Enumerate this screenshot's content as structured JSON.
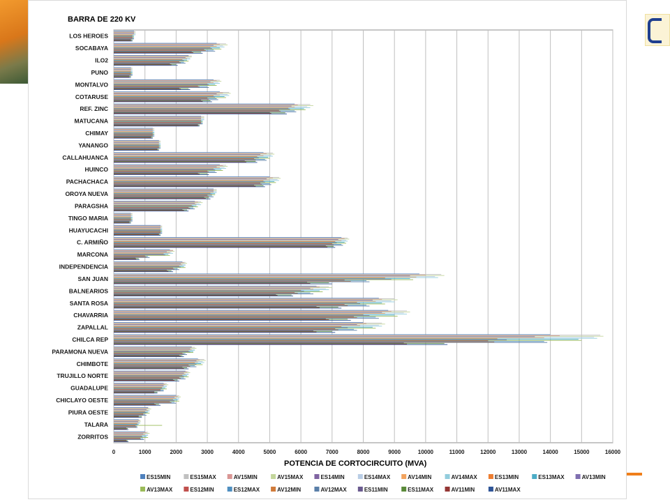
{
  "chart_data": {
    "type": "bar",
    "orientation": "horizontal",
    "title": "BARRA DE 220 KV",
    "xlabel": "POTENCIA DE CORTOCIRCUITO (MVA)",
    "ylabel": "",
    "xlim": [
      0,
      16000
    ],
    "xticks": [
      0,
      1000,
      2000,
      3000,
      4000,
      5000,
      6000,
      7000,
      8000,
      9000,
      10000,
      11000,
      12000,
      13000,
      14000,
      15000,
      16000
    ],
    "grid": true,
    "legend_position": "bottom",
    "categories": [
      "LOS HEROES",
      "SOCABAYA",
      "ILO2",
      "PUNO",
      "MONTALVO",
      "COTARUSE",
      "REF. ZINC",
      "MATUCANA",
      "CHIMAY",
      "YANANGO",
      "CALLAHUANCA",
      "HUINCO",
      "PACHACHACA",
      "OROYA NUEVA",
      "PARAGSHA",
      "TINGO MARIA",
      "HUAYUCACHI",
      "C. ARMIÑO",
      "MARCONA",
      "INDEPENDENCIA",
      "SAN JUAN",
      "BALNEARIOS",
      "SANTA ROSA",
      "CHAVARRIA",
      "ZAPALLAL",
      "CHILCA REP",
      "PARAMONA NUEVA",
      "CHIMBOTE",
      "TRUJILLO NORTE",
      "GUADALUPE",
      "CHICLAYO OESTE",
      "PIURA OESTE",
      "TALARA",
      "ZORRITOS"
    ],
    "series": [
      {
        "name": "ES15MIN",
        "color": "#4f81bd",
        "values": [
          650,
          3300,
          2400,
          550,
          3200,
          3400,
          5800,
          2800,
          1250,
          1450,
          4800,
          3400,
          5000,
          3200,
          2600,
          550,
          1500,
          7300,
          1800,
          2200,
          9800,
          6500,
          8500,
          8800,
          8000,
          14000,
          2500,
          2700,
          2300,
          1600,
          2000,
          1100,
          800,
          1000
        ]
      },
      {
        "name": "ES15MAX",
        "color": "#c0c0c0",
        "values": [
          700,
          3600,
          2500,
          600,
          3400,
          3700,
          6300,
          2900,
          1300,
          1500,
          5100,
          3600,
          5300,
          3300,
          2800,
          600,
          1550,
          7500,
          1900,
          2300,
          10500,
          6900,
          9000,
          9400,
          8600,
          15600,
          2600,
          2900,
          2400,
          1700,
          2100,
          1150,
          850,
          1100
        ]
      },
      {
        "name": "AV15MIN",
        "color": "#d99694",
        "values": [
          650,
          3400,
          2400,
          550,
          3300,
          3500,
          5900,
          2800,
          1250,
          1450,
          4900,
          3500,
          5100,
          3200,
          2700,
          550,
          1500,
          7400,
          1900,
          2250,
          10000,
          6600,
          8600,
          8900,
          8100,
          14300,
          2500,
          2750,
          2350,
          1650,
          2050,
          1100,
          820,
          1050
        ]
      },
      {
        "name": "AV15MAX",
        "color": "#c3d69b",
        "values": [
          700,
          3650,
          2500,
          600,
          3450,
          3750,
          6400,
          2900,
          1300,
          1500,
          5150,
          3650,
          5350,
          3300,
          2850,
          600,
          1550,
          7550,
          1950,
          2350,
          10600,
          7000,
          9100,
          9500,
          8700,
          15700,
          2650,
          2950,
          2450,
          1750,
          2150,
          1200,
          870,
          1150
        ]
      },
      {
        "name": "ES14MIN",
        "color": "#8064a2",
        "values": [
          650,
          3200,
          2300,
          550,
          3100,
          3300,
          5700,
          2800,
          1250,
          1450,
          4700,
          3300,
          4900,
          3200,
          2600,
          550,
          1500,
          7200,
          1700,
          2150,
          9500,
          6300,
          8300,
          8600,
          7800,
          13500,
          2450,
          2650,
          2250,
          1600,
          1950,
          1050,
          780,
          950
        ]
      },
      {
        "name": "ES14MAX",
        "color": "#b9cde5",
        "values": [
          700,
          3500,
          2450,
          600,
          3350,
          3650,
          6200,
          2900,
          1300,
          1500,
          5050,
          3550,
          5250,
          3300,
          2750,
          600,
          1550,
          7450,
          1850,
          2300,
          10300,
          6800,
          8900,
          9300,
          8500,
          15400,
          2600,
          2850,
          2400,
          1700,
          2100,
          1150,
          850,
          1100
        ]
      },
      {
        "name": "AV14MIN",
        "color": "#f2a35e",
        "values": [
          650,
          3300,
          2350,
          550,
          3200,
          3400,
          5800,
          2800,
          1250,
          1450,
          4800,
          3400,
          5000,
          3200,
          2650,
          550,
          1500,
          7300,
          1800,
          2200,
          9700,
          6400,
          8400,
          8700,
          7900,
          13800,
          2500,
          2700,
          2300,
          1600,
          2000,
          1100,
          800,
          1000
        ]
      },
      {
        "name": "AV14MAX",
        "color": "#93cddd",
        "values": [
          700,
          3550,
          2450,
          600,
          3400,
          3700,
          6300,
          2900,
          1300,
          1500,
          5100,
          3600,
          5300,
          3300,
          2800,
          600,
          1550,
          7500,
          1900,
          2300,
          10400,
          6900,
          9000,
          9400,
          8600,
          15500,
          2600,
          2900,
          2400,
          1700,
          2100,
          1150,
          850,
          1100
        ]
      },
      {
        "name": "ES13MIN",
        "color": "#ed7d31",
        "values": [
          600,
          3100,
          2200,
          550,
          3000,
          3200,
          5600,
          2800,
          1250,
          1450,
          4600,
          3200,
          4800,
          3100,
          2500,
          550,
          1500,
          7100,
          1600,
          2100,
          8700,
          6000,
          7800,
          8000,
          7300,
          12300,
          2400,
          2600,
          2200,
          1550,
          1900,
          1000,
          750,
          900
        ]
      },
      {
        "name": "ES13MAX",
        "color": "#4bacc6",
        "values": [
          650,
          3400,
          2350,
          600,
          3250,
          3550,
          6100,
          2850,
          1300,
          1500,
          4950,
          3450,
          5150,
          3250,
          2650,
          600,
          1550,
          7400,
          1750,
          2250,
          9500,
          6600,
          8600,
          9000,
          8300,
          14900,
          2550,
          2800,
          2350,
          1650,
          2050,
          1100,
          800,
          1050
        ]
      },
      {
        "name": "AV13MIN",
        "color": "#7f6fb0",
        "values": [
          600,
          3150,
          2250,
          550,
          3050,
          3250,
          5650,
          2800,
          1250,
          1450,
          4650,
          3250,
          4850,
          3150,
          2550,
          550,
          1500,
          7150,
          1650,
          2150,
          8900,
          6100,
          7900,
          8200,
          7500,
          12600,
          2450,
          2650,
          2250,
          1550,
          1950,
          1050,
          760,
          920
        ]
      },
      {
        "name": "AV13MAX",
        "color": "#9bbb59",
        "values": [
          650,
          3450,
          2400,
          600,
          3300,
          3600,
          6150,
          2850,
          1300,
          1500,
          5000,
          3500,
          5200,
          3250,
          2700,
          600,
          1550,
          7450,
          1800,
          2300,
          9600,
          6700,
          8700,
          9100,
          8400,
          15000,
          2550,
          2850,
          2400,
          1700,
          2100,
          1150,
          1550,
          1100
        ]
      },
      {
        "name": "ES12MIN",
        "color": "#c0504d",
        "values": [
          600,
          2900,
          2100,
          550,
          2700,
          3000,
          5300,
          2800,
          1250,
          1450,
          4500,
          3000,
          4700,
          3000,
          2400,
          550,
          1500,
          7000,
          1000,
          1900,
          7400,
          5800,
          7400,
          7700,
          7100,
          12000,
          2200,
          2400,
          2100,
          1500,
          1800,
          950,
          700,
          850
        ]
      },
      {
        "name": "ES12MAX",
        "color": "#4f8fc0",
        "values": [
          650,
          3200,
          2250,
          600,
          3000,
          3300,
          5800,
          2850,
          1300,
          1500,
          4850,
          3250,
          5000,
          3150,
          2550,
          600,
          1550,
          7300,
          1100,
          2050,
          8100,
          6300,
          8100,
          8400,
          7700,
          13800,
          2300,
          2600,
          2250,
          1600,
          1950,
          1000,
          750,
          950
        ]
      },
      {
        "name": "AV12MIN",
        "color": "#d07b3a",
        "values": [
          600,
          2950,
          2150,
          550,
          2750,
          3050,
          5350,
          2800,
          1250,
          1450,
          4550,
          3050,
          4750,
          3050,
          2450,
          550,
          1500,
          7050,
          1050,
          1950,
          7600,
          5900,
          7500,
          7800,
          7200,
          12200,
          2250,
          2450,
          2150,
          1500,
          1850,
          950,
          720,
          870
        ]
      },
      {
        "name": "AV12MAX",
        "color": "#5a7fa8",
        "values": [
          650,
          3250,
          2300,
          600,
          3050,
          3350,
          5850,
          2850,
          1300,
          1500,
          4900,
          3300,
          5050,
          3200,
          2600,
          600,
          1550,
          7350,
          1150,
          2100,
          8200,
          6400,
          8200,
          8500,
          7800,
          13900,
          2350,
          2650,
          2300,
          1600,
          2000,
          1050,
          760,
          970
        ]
      },
      {
        "name": "ES11MIN",
        "color": "#6a5a8f",
        "values": [
          550,
          2500,
          1800,
          500,
          2100,
          2800,
          5000,
          2700,
          1200,
          1400,
          4200,
          2700,
          4500,
          2900,
          2200,
          500,
          1450,
          6800,
          700,
          1700,
          6200,
          5200,
          6500,
          6800,
          6400,
          9300,
          2100,
          2200,
          1900,
          1300,
          1300,
          800,
          400,
          400
        ]
      },
      {
        "name": "ES11MAX",
        "color": "#5a8a3a",
        "values": [
          600,
          2800,
          2000,
          550,
          2400,
          3100,
          5500,
          2750,
          1250,
          1450,
          4550,
          3000,
          4800,
          3050,
          2350,
          550,
          1500,
          7050,
          800,
          1850,
          6900,
          5700,
          7200,
          7500,
          7000,
          10600,
          2200,
          2350,
          2050,
          1400,
          1450,
          900,
          450,
          450
        ]
      },
      {
        "name": "AV11MIN",
        "color": "#943634",
        "values": [
          550,
          2550,
          1850,
          500,
          2150,
          2850,
          5050,
          2700,
          1200,
          1400,
          4250,
          2750,
          4550,
          2950,
          2250,
          500,
          1450,
          6850,
          720,
          1750,
          6300,
          5250,
          6600,
          6900,
          6500,
          9400,
          2150,
          2250,
          1950,
          1300,
          1350,
          800,
          420,
          420
        ]
      },
      {
        "name": "AV11MAX",
        "color": "#2f5597",
        "values": [
          600,
          2850,
          2050,
          550,
          2450,
          3150,
          5550,
          2750,
          1250,
          1450,
          4600,
          3050,
          4850,
          3100,
          2400,
          550,
          1500,
          7100,
          820,
          1900,
          7000,
          5750,
          7300,
          7600,
          7100,
          10700,
          2250,
          2400,
          2100,
          1400,
          1500,
          900,
          470,
          470
        ]
      }
    ]
  }
}
